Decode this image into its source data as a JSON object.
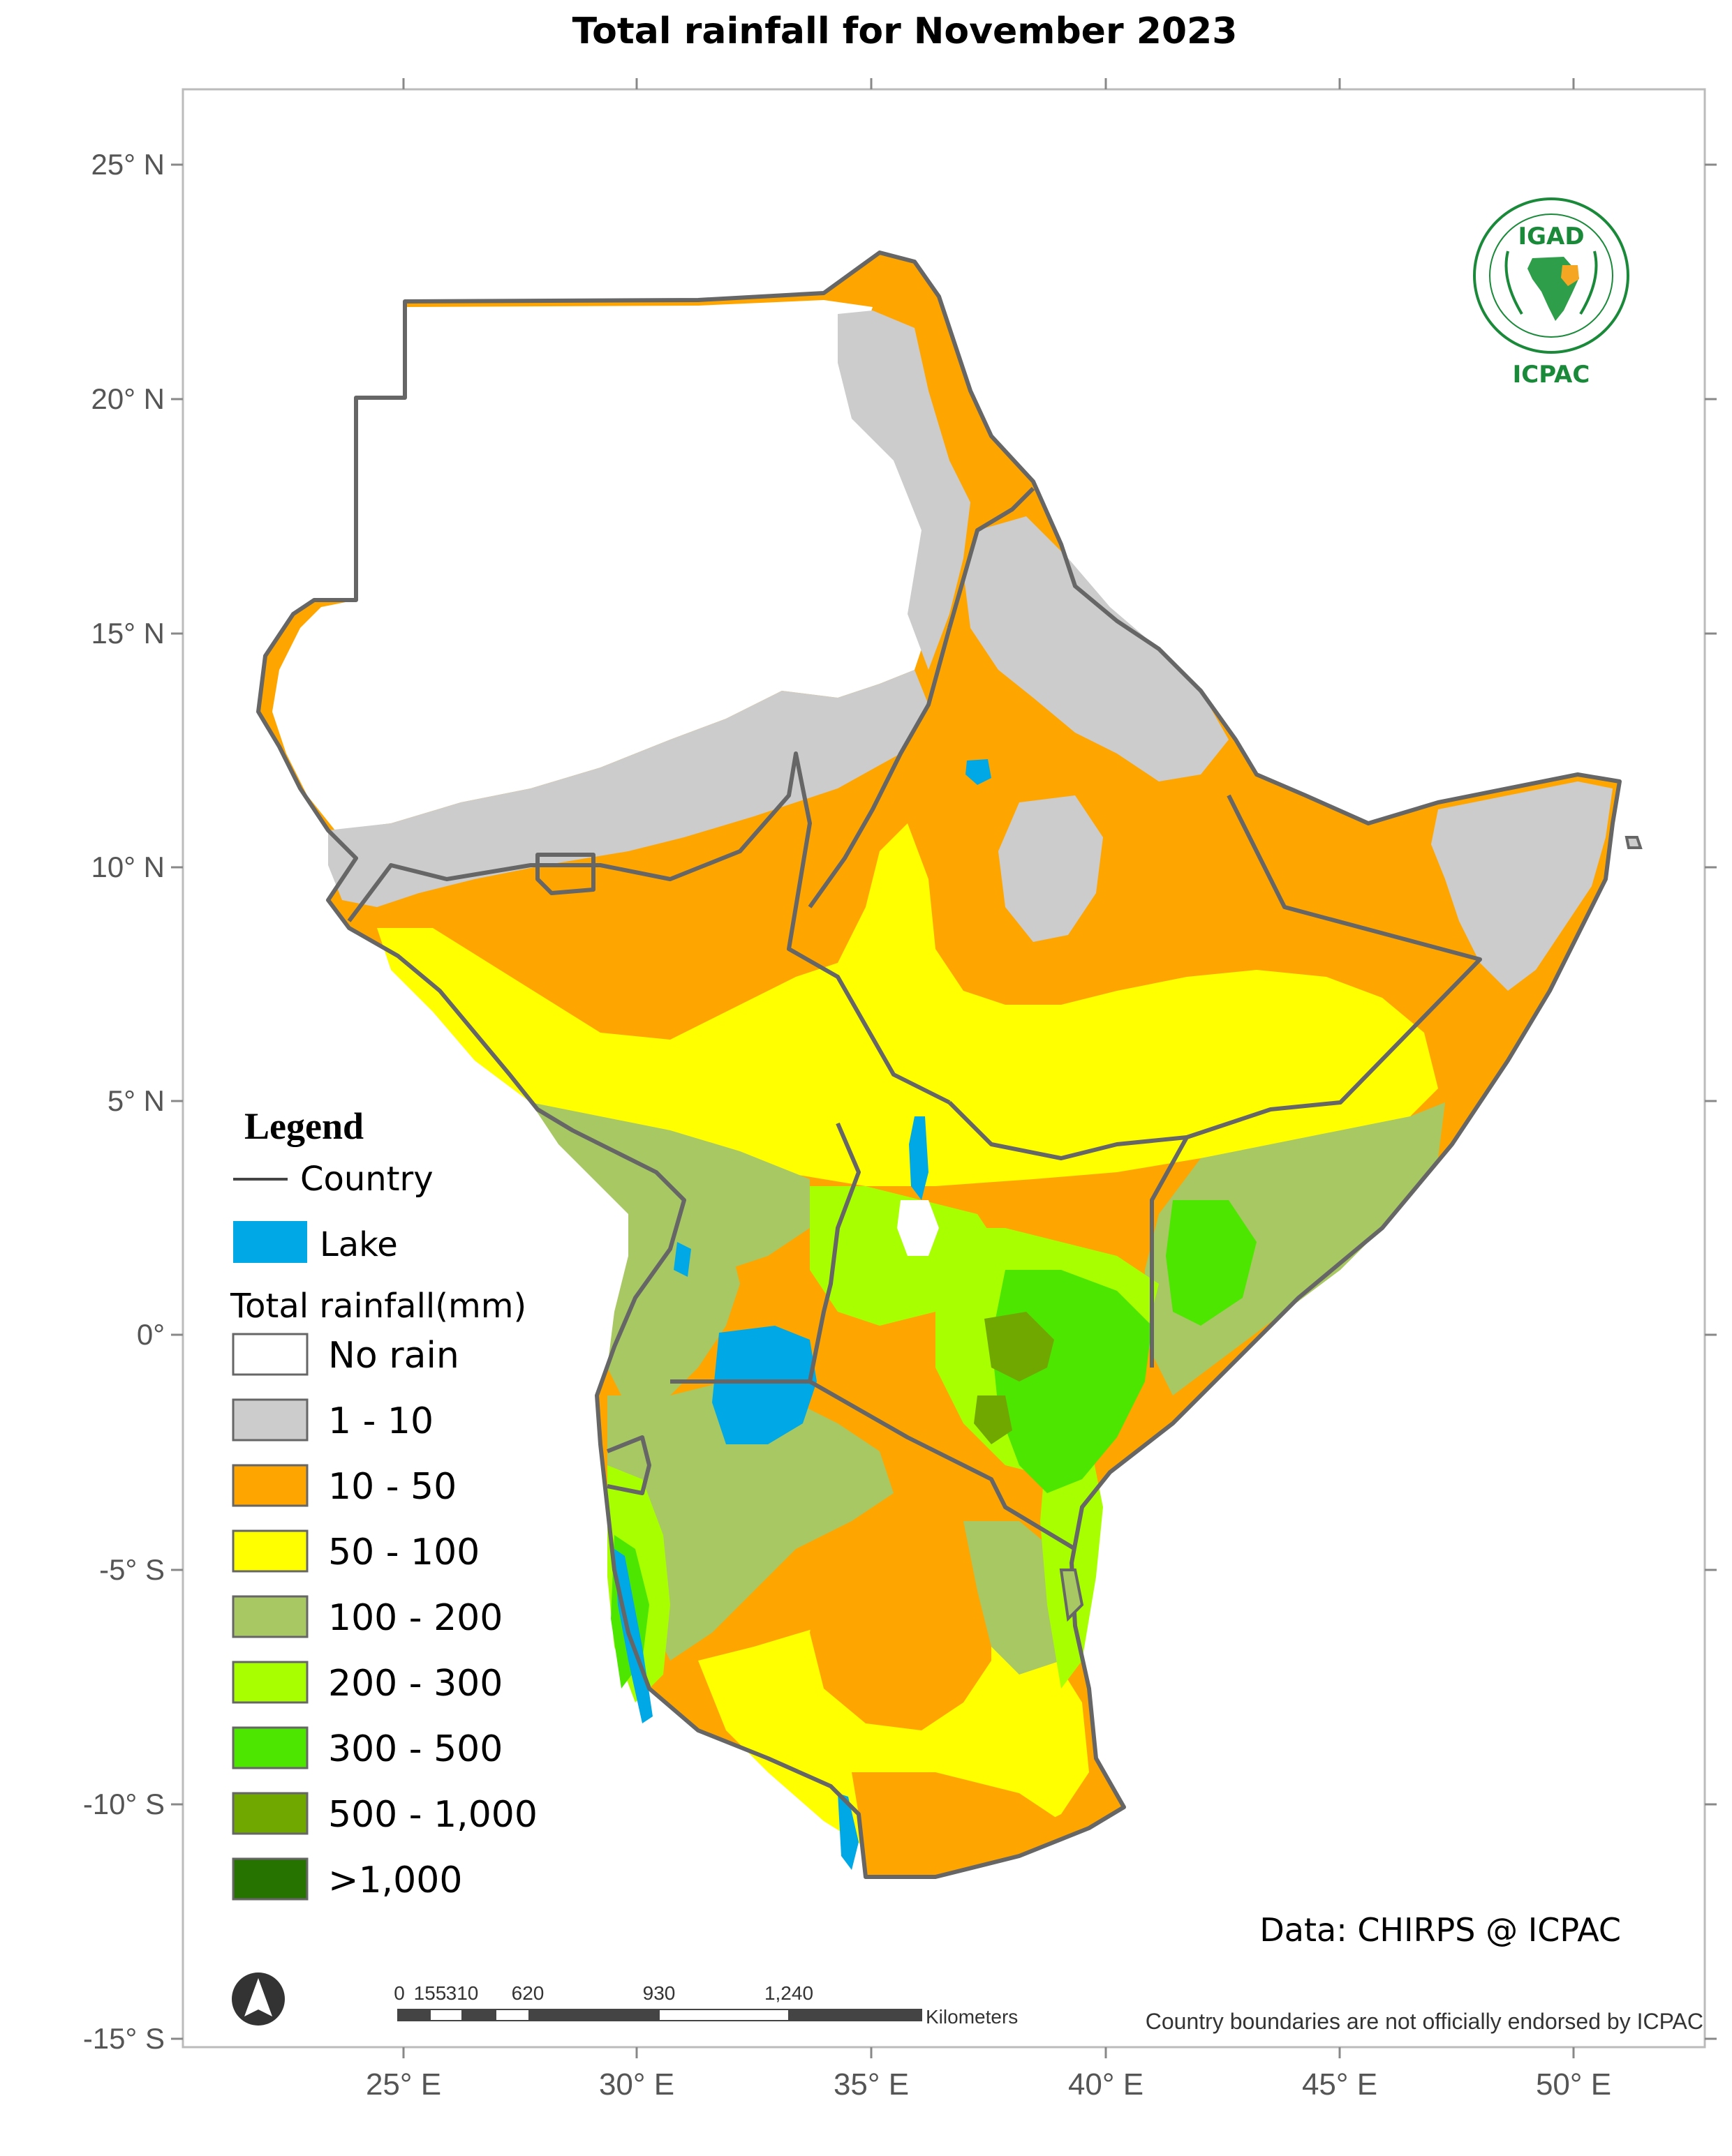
{
  "title": "Total rainfall  for  November  2023",
  "axes": {
    "lat_labels": [
      "25° N",
      "20° N",
      "15° N",
      "10° N",
      "5° N",
      "0°",
      "-5° S",
      "-10° S",
      "-15° S"
    ],
    "lon_labels": [
      "25° E",
      "30° E",
      "35° E",
      "40° E",
      "45° E",
      "50° E"
    ]
  },
  "logo": {
    "top_text": "IGAD",
    "bottom_text": "ICPAC",
    "color": "#1a8a3a"
  },
  "legend": {
    "heading": "Legend",
    "country_label": "Country",
    "lake_label": "Lake",
    "rain_heading": "Total rainfall(mm)",
    "classes": [
      {
        "label": "No rain",
        "color": "#ffffff"
      },
      {
        "label": "1 - 10",
        "color": "#cccccc"
      },
      {
        "label": "10 - 50",
        "color": "#ffa500"
      },
      {
        "label": "50 - 100",
        "color": "#ffff00"
      },
      {
        "label": "100 - 200",
        "color": "#a8c864"
      },
      {
        "label": "200 - 300",
        "color": "#a8ff00"
      },
      {
        "label": "300 - 500",
        "color": "#4ce600"
      },
      {
        "label": "500 - 1,000",
        "color": "#70a800"
      },
      {
        "label": ">1,000",
        "color": "#267300"
      }
    ],
    "lake_color": "#00a9e6"
  },
  "scale_bar": {
    "ticks": [
      "0",
      "155",
      "310",
      "620",
      "930",
      "1,240"
    ],
    "unit": "Kilometers"
  },
  "credits": {
    "data_source": "Data: CHIRPS @ ICPAC",
    "disclaimer": "Country boundaries are not officially endorsed by ICPAC"
  }
}
